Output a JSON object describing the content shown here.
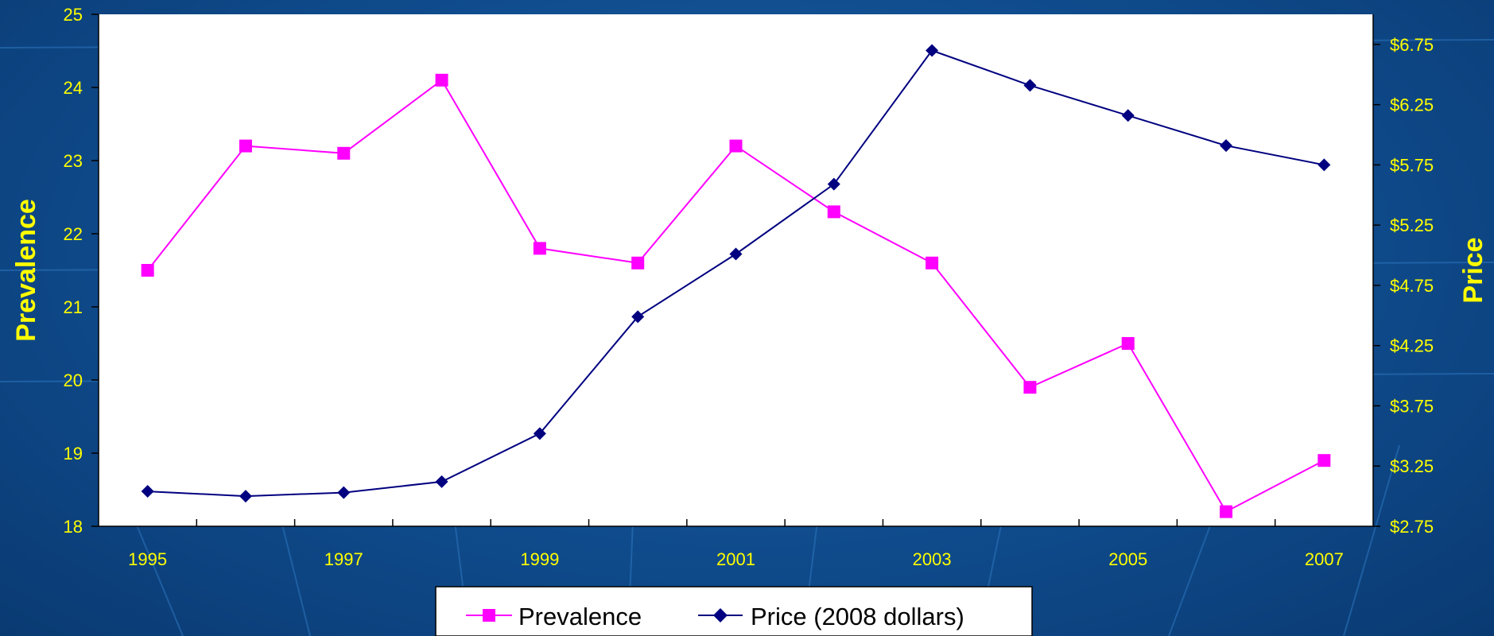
{
  "colors": {
    "prevalence": "#ff00ff",
    "price": "#000080",
    "text": "#ffff00",
    "plot_bg": "#ffffff"
  },
  "chart_data": {
    "type": "line",
    "title": "",
    "x": [
      1995,
      1996,
      1997,
      1998,
      1999,
      2000,
      2001,
      2002,
      2003,
      2004,
      2005,
      2006,
      2007
    ],
    "xtick_labels": [
      "1995",
      "1997",
      "1999",
      "2001",
      "2003",
      "2005",
      "2007"
    ],
    "y_left": {
      "label": "Prevalence",
      "lim": [
        18,
        25
      ],
      "ticks": [
        "18",
        "19",
        "20",
        "21",
        "22",
        "23",
        "24",
        "25"
      ]
    },
    "y_right": {
      "label": "Price",
      "lim": [
        2.75,
        7.0
      ],
      "ticks": [
        "$2.75",
        "$3.25",
        "$3.75",
        "$4.25",
        "$4.75",
        "$5.25",
        "$5.75",
        "$6.25",
        "$6.75"
      ]
    },
    "grid": false,
    "legend_position": "bottom-center",
    "series": [
      {
        "name": "Prevalence",
        "axis": "left",
        "marker": "square",
        "values": [
          21.5,
          23.2,
          23.1,
          24.1,
          21.8,
          21.6,
          23.2,
          22.3,
          21.6,
          19.9,
          20.5,
          18.2,
          18.9
        ]
      },
      {
        "name": "Price (2008 dollars)",
        "axis": "right",
        "marker": "diamond",
        "values": [
          3.04,
          3.0,
          3.03,
          3.12,
          3.52,
          4.49,
          5.01,
          5.59,
          6.7,
          6.41,
          6.16,
          5.91,
          5.75
        ]
      }
    ]
  }
}
